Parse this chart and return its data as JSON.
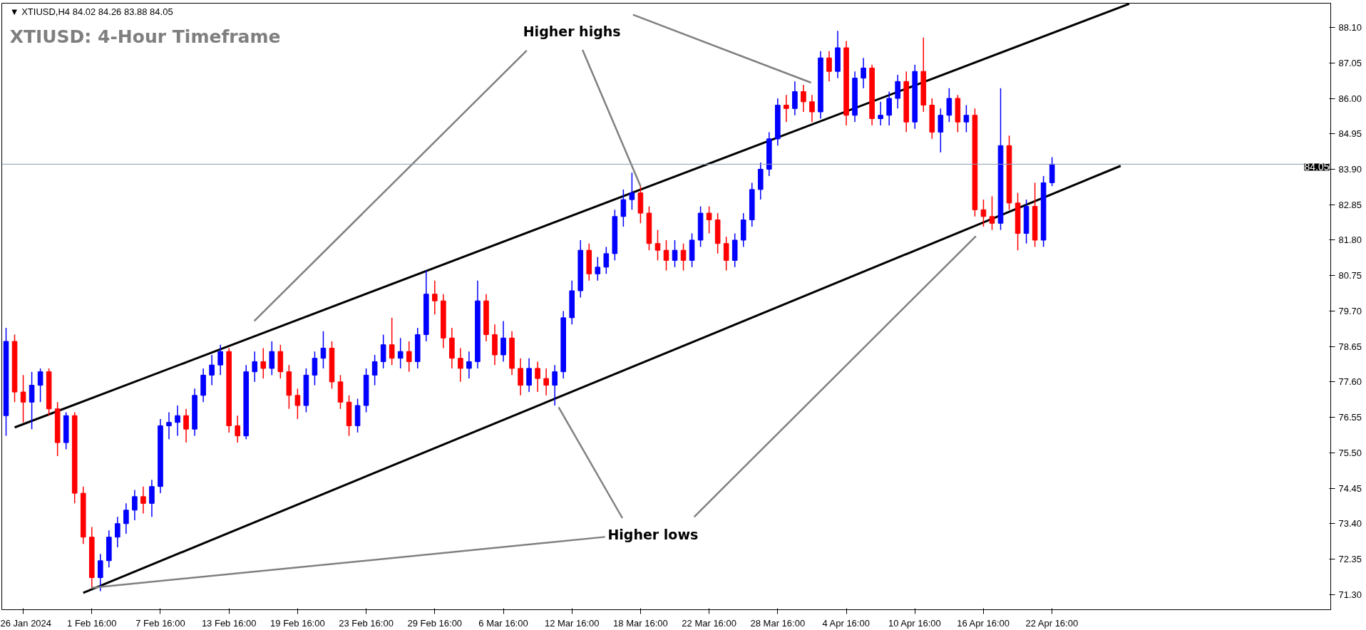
{
  "chart_data": {
    "type": "candlestick",
    "title": "XTIUSD: 4-Hour Timeframe",
    "subtitle": "▼ XTIUSD,H4  84.02 84.26 83.88 84.05",
    "annotations": [
      {
        "text": "Higher highs",
        "x": "18 Mar 16:00",
        "y": 83.4
      },
      {
        "text": "Higher lows",
        "x": "1 Feb 16:00",
        "y": 71.5
      }
    ],
    "categories": [
      null,
      null,
      "26 Jan 2024",
      null,
      null,
      null,
      null,
      null,
      null,
      null,
      "1 Feb 16:00",
      null,
      null,
      null,
      null,
      null,
      null,
      null,
      "7 Feb 16:00",
      null,
      null,
      null,
      null,
      null,
      null,
      null,
      "13 Feb 16:00",
      null,
      null,
      null,
      null,
      null,
      null,
      null,
      "19 Feb 16:00",
      null,
      null,
      null,
      null,
      null,
      null,
      null,
      "23 Feb 16:00",
      null,
      null,
      null,
      null,
      null,
      null,
      null,
      "29 Feb 16:00",
      null,
      null,
      null,
      null,
      null,
      null,
      null,
      "6 Mar 16:00",
      null,
      null,
      null,
      null,
      null,
      null,
      null,
      "12 Mar 16:00",
      null,
      null,
      null,
      null,
      null,
      null,
      null,
      "18 Mar 16:00",
      null,
      null,
      null,
      null,
      null,
      null,
      null,
      "22 Mar 16:00",
      null,
      null,
      null,
      null,
      null,
      null,
      null,
      "28 Mar 16:00",
      null,
      null,
      null,
      null,
      null,
      null,
      null,
      "4 Apr 16:00",
      null,
      null,
      null,
      null,
      null,
      null,
      null,
      "10 Apr 16:00",
      null,
      null,
      null,
      null,
      null,
      null,
      null,
      "16 Apr 16:00",
      null,
      null,
      null,
      null,
      null,
      null,
      null,
      "22 Apr 16:00",
      null,
      null,
      null,
      null,
      null,
      null,
      null,
      null,
      null,
      null,
      null,
      null,
      null,
      null,
      null,
      null,
      null,
      null,
      null,
      null,
      null,
      null,
      null,
      null,
      null,
      null,
      null,
      null,
      null,
      null,
      null,
      null
    ],
    "ohlc": [
      [
        76.6,
        79.2,
        76.0,
        78.8
      ],
      [
        78.8,
        79.0,
        77.0,
        77.3
      ],
      [
        77.3,
        77.8,
        76.4,
        77.0
      ],
      [
        77.0,
        77.9,
        76.2,
        77.5
      ],
      [
        77.5,
        78.0,
        77.0,
        77.9
      ],
      [
        77.9,
        78.0,
        76.6,
        76.8
      ],
      [
        76.8,
        77.0,
        75.4,
        75.8
      ],
      [
        75.8,
        76.7,
        75.6,
        76.6
      ],
      [
        76.6,
        76.7,
        74.0,
        74.3
      ],
      [
        74.3,
        74.5,
        72.8,
        73.0
      ],
      [
        73.0,
        73.3,
        71.5,
        71.8
      ],
      [
        71.8,
        72.5,
        71.4,
        72.3
      ],
      [
        72.3,
        73.2,
        72.1,
        73.0
      ],
      [
        73.0,
        73.6,
        72.7,
        73.4
      ],
      [
        73.4,
        74.0,
        73.1,
        73.8
      ],
      [
        73.8,
        74.4,
        73.5,
        74.2
      ],
      [
        74.2,
        74.5,
        73.7,
        74.0
      ],
      [
        74.0,
        74.7,
        73.6,
        74.5
      ],
      [
        74.5,
        76.5,
        74.3,
        76.3
      ],
      [
        76.3,
        76.7,
        75.9,
        76.4
      ],
      [
        76.4,
        76.9,
        76.0,
        76.6
      ],
      [
        76.6,
        76.8,
        75.8,
        76.2
      ],
      [
        76.2,
        77.4,
        76.0,
        77.2
      ],
      [
        77.2,
        78.0,
        77.0,
        77.8
      ],
      [
        77.8,
        78.4,
        77.5,
        78.1
      ],
      [
        78.1,
        78.7,
        77.8,
        78.5
      ],
      [
        78.5,
        78.6,
        76.1,
        76.3
      ],
      [
        76.3,
        76.6,
        75.8,
        76.0
      ],
      [
        76.0,
        78.1,
        75.9,
        77.9
      ],
      [
        77.9,
        78.5,
        77.6,
        78.2
      ],
      [
        78.2,
        78.6,
        77.7,
        78.0
      ],
      [
        78.0,
        78.8,
        77.8,
        78.5
      ],
      [
        78.5,
        78.7,
        77.7,
        77.9
      ],
      [
        77.9,
        78.1,
        76.8,
        77.2
      ],
      [
        77.2,
        77.4,
        76.5,
        76.9
      ],
      [
        76.9,
        78.0,
        76.7,
        77.8
      ],
      [
        77.8,
        78.5,
        77.5,
        78.3
      ],
      [
        78.3,
        79.1,
        78.0,
        78.6
      ],
      [
        78.6,
        78.8,
        77.4,
        77.6
      ],
      [
        77.6,
        77.8,
        76.8,
        77.0
      ],
      [
        77.0,
        77.2,
        76.0,
        76.3
      ],
      [
        76.3,
        77.1,
        76.1,
        76.9
      ],
      [
        76.9,
        78.0,
        76.7,
        77.8
      ],
      [
        77.8,
        78.4,
        77.5,
        78.2
      ],
      [
        78.2,
        79.0,
        78.0,
        78.7
      ],
      [
        78.7,
        79.5,
        78.1,
        78.3
      ],
      [
        78.3,
        78.9,
        78.0,
        78.5
      ],
      [
        78.5,
        78.8,
        77.9,
        78.2
      ],
      [
        78.2,
        79.2,
        78.0,
        79.0
      ],
      [
        79.0,
        80.9,
        78.8,
        80.2
      ],
      [
        80.2,
        80.6,
        79.6,
        80.0
      ],
      [
        80.0,
        80.2,
        78.6,
        78.9
      ],
      [
        78.9,
        79.2,
        78.0,
        78.3
      ],
      [
        78.3,
        78.6,
        77.6,
        78.0
      ],
      [
        78.0,
        78.5,
        77.7,
        78.2
      ],
      [
        78.2,
        80.6,
        78.0,
        80.0
      ],
      [
        80.0,
        80.2,
        78.8,
        79.0
      ],
      [
        79.0,
        79.3,
        78.1,
        78.4
      ],
      [
        78.4,
        79.4,
        78.2,
        78.9
      ],
      [
        78.9,
        79.1,
        77.8,
        78.0
      ],
      [
        78.0,
        78.3,
        77.2,
        77.5
      ],
      [
        77.5,
        78.3,
        77.3,
        78.0
      ],
      [
        78.0,
        78.2,
        77.3,
        77.7
      ],
      [
        77.7,
        78.0,
        77.2,
        77.5
      ],
      [
        77.5,
        78.1,
        76.9,
        77.9
      ],
      [
        77.9,
        79.7,
        77.7,
        79.5
      ],
      [
        79.5,
        80.6,
        79.3,
        80.3
      ],
      [
        80.3,
        81.8,
        80.1,
        81.5
      ],
      [
        81.5,
        81.7,
        80.6,
        80.8
      ],
      [
        80.8,
        81.3,
        80.6,
        81.0
      ],
      [
        81.0,
        81.6,
        80.8,
        81.4
      ],
      [
        81.4,
        82.7,
        81.2,
        82.5
      ],
      [
        82.5,
        83.3,
        82.2,
        83.0
      ],
      [
        83.0,
        83.8,
        82.7,
        83.2
      ],
      [
        83.2,
        83.4,
        82.3,
        82.6
      ],
      [
        82.6,
        82.8,
        81.5,
        81.7
      ],
      [
        81.7,
        82.1,
        81.2,
        81.5
      ],
      [
        81.5,
        81.8,
        80.9,
        81.2
      ],
      [
        81.2,
        81.8,
        81.0,
        81.5
      ],
      [
        81.5,
        81.7,
        80.9,
        81.2
      ],
      [
        81.2,
        82.0,
        81.0,
        81.8
      ],
      [
        81.8,
        82.8,
        81.6,
        82.6
      ],
      [
        82.6,
        82.8,
        82.0,
        82.4
      ],
      [
        82.4,
        82.6,
        81.4,
        81.7
      ],
      [
        81.7,
        81.9,
        80.9,
        81.2
      ],
      [
        81.2,
        82.0,
        81.0,
        81.8
      ],
      [
        81.8,
        82.6,
        81.6,
        82.4
      ],
      [
        82.4,
        83.5,
        82.2,
        83.3
      ],
      [
        83.3,
        84.1,
        83.0,
        83.9
      ],
      [
        83.9,
        85.0,
        83.7,
        84.8
      ],
      [
        84.8,
        86.0,
        84.6,
        85.8
      ],
      [
        85.8,
        86.1,
        85.3,
        85.7
      ],
      [
        85.7,
        86.5,
        85.5,
        86.2
      ],
      [
        86.2,
        86.4,
        85.6,
        85.9
      ],
      [
        85.9,
        86.1,
        85.3,
        85.6
      ],
      [
        85.6,
        87.4,
        85.4,
        87.2
      ],
      [
        87.2,
        87.4,
        86.5,
        86.8
      ],
      [
        86.8,
        88.0,
        86.6,
        87.5
      ],
      [
        87.5,
        87.7,
        85.2,
        85.5
      ],
      [
        85.5,
        86.8,
        85.3,
        86.6
      ],
      [
        86.6,
        87.2,
        86.3,
        86.9
      ],
      [
        86.9,
        87.0,
        85.2,
        85.4
      ],
      [
        85.4,
        85.9,
        85.2,
        85.5
      ],
      [
        85.5,
        86.2,
        85.2,
        86.0
      ],
      [
        86.0,
        86.7,
        85.7,
        86.5
      ],
      [
        86.5,
        86.8,
        85.0,
        85.3
      ],
      [
        85.3,
        87.0,
        85.1,
        86.8
      ],
      [
        86.8,
        87.8,
        85.6,
        85.8
      ],
      [
        85.8,
        86.0,
        84.8,
        85.0
      ],
      [
        85.0,
        85.7,
        84.4,
        85.5
      ],
      [
        85.5,
        86.3,
        85.3,
        86.0
      ],
      [
        86.0,
        86.1,
        85.0,
        85.3
      ],
      [
        85.3,
        85.8,
        85.0,
        85.5
      ],
      [
        85.5,
        85.7,
        82.5,
        82.7
      ],
      [
        82.7,
        83.0,
        82.2,
        82.5
      ],
      [
        82.5,
        83.1,
        82.1,
        82.3
      ],
      [
        82.3,
        86.3,
        82.1,
        84.6
      ],
      [
        84.6,
        84.9,
        82.7,
        82.9
      ],
      [
        82.9,
        83.2,
        81.5,
        82.0
      ],
      [
        82.0,
        83.0,
        81.7,
        82.8
      ],
      [
        82.8,
        83.5,
        81.6,
        81.8
      ],
      [
        81.8,
        83.7,
        81.6,
        83.5
      ],
      [
        83.5,
        84.26,
        83.4,
        84.05
      ],
      null,
      null,
      null,
      null,
      null,
      null,
      null,
      null,
      null,
      null,
      null,
      null,
      null,
      null,
      null,
      null,
      null,
      null,
      null,
      null,
      null,
      null,
      null,
      null,
      null,
      null,
      null,
      null,
      null,
      null,
      null,
      null
    ],
    "colors": [
      "#0000ff",
      "#ff0000",
      "#ff0000",
      "#0000ff",
      "#0000ff",
      "#ff0000",
      "#ff0000",
      "#0000ff",
      "#ff0000",
      "#ff0000",
      "#ff0000",
      "#0000ff",
      "#0000ff",
      "#0000ff",
      "#0000ff",
      "#0000ff",
      "#ff0000",
      "#0000ff",
      "#0000ff",
      "#0000ff",
      "#0000ff",
      "#ff0000",
      "#0000ff",
      "#0000ff",
      "#0000ff",
      "#0000ff",
      "#ff0000",
      "#ff0000",
      "#0000ff",
      "#0000ff",
      "#ff0000",
      "#0000ff",
      "#ff0000",
      "#ff0000",
      "#ff0000",
      "#0000ff",
      "#0000ff",
      "#0000ff",
      "#ff0000",
      "#ff0000",
      "#ff0000",
      "#0000ff",
      "#0000ff",
      "#0000ff",
      "#0000ff",
      "#ff0000",
      "#0000ff",
      "#ff0000",
      "#0000ff",
      "#0000ff",
      "#ff0000",
      "#ff0000",
      "#ff0000",
      "#ff0000",
      "#0000ff",
      "#0000ff",
      "#ff0000",
      "#ff0000",
      "#0000ff",
      "#ff0000",
      "#ff0000",
      "#0000ff",
      "#ff0000",
      "#ff0000",
      "#0000ff",
      "#0000ff",
      "#0000ff",
      "#0000ff",
      "#ff0000",
      "#0000ff",
      "#0000ff",
      "#0000ff",
      "#0000ff",
      "#0000ff",
      "#ff0000",
      "#ff0000",
      "#ff0000",
      "#ff0000",
      "#0000ff",
      "#ff0000",
      "#0000ff",
      "#0000ff",
      "#ff0000",
      "#ff0000",
      "#ff0000",
      "#0000ff",
      "#0000ff",
      "#0000ff",
      "#0000ff",
      "#0000ff",
      "#0000ff",
      "#ff0000",
      "#0000ff",
      "#ff0000",
      "#ff0000",
      "#0000ff",
      "#ff0000",
      "#0000ff",
      "#ff0000",
      "#0000ff",
      "#0000ff",
      "#ff0000",
      "#0000ff",
      "#0000ff",
      "#0000ff",
      "#ff0000",
      "#0000ff",
      "#ff0000",
      "#ff0000",
      "#0000ff",
      "#0000ff",
      "#ff0000",
      "#0000ff",
      "#ff0000",
      "#ff0000",
      "#ff0000",
      "#0000ff",
      "#ff0000",
      "#ff0000",
      "#0000ff",
      "#ff0000",
      "#0000ff",
      "#0000ff",
      null,
      null,
      null,
      null,
      null,
      null,
      null,
      null,
      null,
      null,
      null,
      null,
      null,
      null,
      null,
      null,
      null,
      null,
      null,
      null,
      null,
      null,
      null,
      null,
      null,
      null,
      null,
      null,
      null,
      null,
      null,
      null
    ],
    "series": [
      {
        "type": "line",
        "color": "#000000",
        "values": [
          null,
          76.25,
          null,
          null,
          null,
          null,
          null,
          null,
          null,
          null,
          null,
          null,
          null,
          null,
          null,
          null,
          null,
          null,
          null,
          null,
          null,
          null,
          null,
          null,
          null,
          null,
          null,
          null,
          null,
          null,
          null,
          null,
          null,
          null,
          null,
          null,
          null,
          null,
          null,
          null,
          null,
          null,
          null,
          null,
          null,
          null,
          null,
          null,
          null,
          null,
          null,
          null,
          null,
          null,
          null,
          null,
          null,
          null,
          null,
          null,
          null,
          null,
          null,
          null,
          null,
          null,
          null,
          null,
          null,
          null,
          null,
          null,
          null,
          null,
          null,
          null,
          null,
          null,
          null,
          null,
          null,
          null,
          null,
          null,
          null,
          null,
          null,
          null,
          null,
          null,
          null,
          null,
          null,
          null,
          null,
          null,
          null,
          null,
          null,
          null,
          null,
          null,
          null,
          null,
          null,
          null,
          null,
          null,
          null,
          null,
          null,
          null,
          null,
          null,
          null,
          null,
          null,
          null,
          null,
          null,
          null,
          null,
          null,
          null,
          null,
          null,
          null,
          null,
          null,
          null,
          null,
          88.8,
          null,
          null,
          null,
          null,
          null,
          null,
          null,
          null,
          null,
          null,
          null,
          null,
          null,
          null,
          null,
          null,
          null,
          null,
          null,
          null,
          null,
          null,
          null
        ]
      },
      {
        "type": "line",
        "color": "#000000",
        "values": [
          null,
          null,
          null,
          null,
          null,
          null,
          null,
          null,
          null,
          71.35,
          null,
          null,
          null,
          null,
          null,
          null,
          null,
          null,
          null,
          null,
          null,
          null,
          null,
          null,
          null,
          null,
          null,
          null,
          null,
          null,
          null,
          null,
          null,
          null,
          null,
          null,
          null,
          null,
          null,
          null,
          null,
          null,
          null,
          null,
          null,
          null,
          null,
          null,
          null,
          null,
          null,
          null,
          null,
          null,
          null,
          null,
          null,
          null,
          null,
          null,
          null,
          null,
          null,
          null,
          null,
          null,
          null,
          null,
          null,
          null,
          null,
          null,
          null,
          null,
          null,
          null,
          null,
          null,
          null,
          null,
          null,
          null,
          null,
          null,
          null,
          null,
          null,
          null,
          null,
          null,
          null,
          null,
          null,
          null,
          null,
          null,
          null,
          null,
          null,
          null,
          null,
          null,
          null,
          null,
          null,
          null,
          null,
          null,
          null,
          null,
          null,
          null,
          null,
          null,
          null,
          null,
          null,
          null,
          null,
          null,
          null,
          null,
          null,
          null,
          null,
          null,
          null,
          null,
          null,
          null,
          84.0,
          null,
          null,
          null,
          null,
          null,
          null,
          null,
          null,
          null,
          null,
          null,
          null,
          null,
          null,
          null,
          null,
          null,
          null,
          null,
          null,
          null,
          null,
          null,
          null
        ]
      }
    ],
    "ylim": [
      70.85,
      88.82
    ],
    "yticks": [
      {
        "value": 71.3,
        "label": "71.30"
      },
      {
        "value": 72.35,
        "label": "72.35"
      },
      {
        "value": 73.4,
        "label": "73.40"
      },
      {
        "value": 74.45,
        "label": "74.45"
      },
      {
        "value": 75.5,
        "label": "75.50"
      },
      {
        "value": 76.55,
        "label": "76.55"
      },
      {
        "value": 77.6,
        "label": "77.60"
      },
      {
        "value": 78.65,
        "label": "78.65"
      },
      {
        "value": 79.7,
        "label": "79.70"
      },
      {
        "value": 80.75,
        "label": "80.75"
      },
      {
        "value": 81.8,
        "label": "81.80"
      },
      {
        "value": 82.85,
        "label": "82.85"
      },
      {
        "value": 83.9,
        "label": "83.90"
      },
      {
        "value": 84.95,
        "label": "84.95"
      },
      {
        "value": 86.0,
        "label": "86.00"
      },
      {
        "value": 87.05,
        "label": "87.05"
      },
      {
        "value": 88.1,
        "label": "88.10"
      }
    ],
    "ref_lines": [
      {
        "axis": "y",
        "value": 84.05,
        "label": "84.05",
        "color": "#8c9cb0"
      }
    ],
    "grid": false
  }
}
